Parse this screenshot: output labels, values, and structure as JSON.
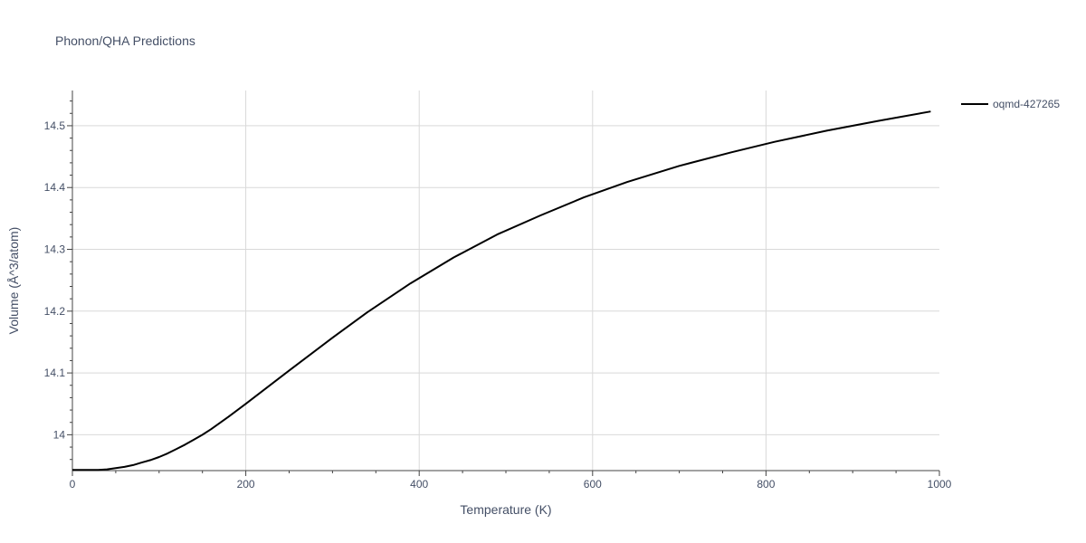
{
  "chart_data": {
    "type": "line",
    "title": "Phonon/QHA Predictions",
    "xlabel": "Temperature (K)",
    "ylabel": "Volume (Å^3/atom)",
    "xlim": [
      0,
      1000
    ],
    "ylim": [
      13.942,
      14.557
    ],
    "xticks": [
      0,
      200,
      400,
      600,
      800,
      1000
    ],
    "xtick_labels": [
      "0",
      "200",
      "400",
      "600",
      "800",
      "1000"
    ],
    "yticks": [
      14.0,
      14.1,
      14.2,
      14.3,
      14.4,
      14.5
    ],
    "ytick_labels": [
      "14",
      "14.1",
      "14.2",
      "14.3",
      "14.4",
      "14.5"
    ],
    "grid": true,
    "legend_position": "top-right",
    "series": [
      {
        "name": "oqmd-427265",
        "color": "#000000",
        "x": [
          0,
          10,
          30,
          40,
          50,
          60,
          70,
          80,
          90,
          100,
          110,
          120,
          130,
          140,
          150,
          160,
          180,
          200,
          250,
          300,
          340,
          390,
          440,
          490,
          540,
          590,
          640,
          700,
          760,
          810,
          870,
          930,
          990
        ],
        "y": [
          13.943,
          13.943,
          13.943,
          13.944,
          13.946,
          13.948,
          13.951,
          13.955,
          13.959,
          13.964,
          13.97,
          13.977,
          13.984,
          13.992,
          14.0,
          14.009,
          14.029,
          14.05,
          14.104,
          14.157,
          14.198,
          14.245,
          14.287,
          14.324,
          14.355,
          14.384,
          14.409,
          14.435,
          14.457,
          14.474,
          14.492,
          14.508,
          14.523
        ]
      }
    ]
  }
}
